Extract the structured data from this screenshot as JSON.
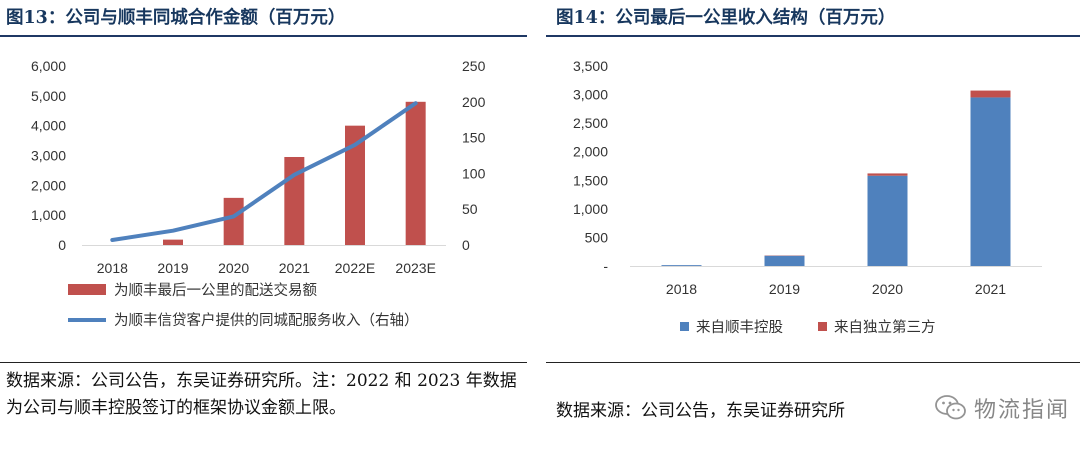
{
  "left": {
    "title": "图13：公司与顺丰同城合作金额（百万元）",
    "note": "数据来源：公司公告，东吴证券研究所。注：2022 和 2023 年数据为公司与顺丰控股签订的框架协议金额上限。"
  },
  "right": {
    "title": "图14：公司最后一公里收入结构（百万元）",
    "note": "数据来源：公司公告，东吴证券研究所"
  },
  "watermark": {
    "text": "物流指闻",
    "icon": "wechat-icon"
  },
  "colors": {
    "red": "#c0504d",
    "blue": "#4f81bd",
    "title": "#17375e"
  },
  "chart_data": [
    {
      "type": "bar",
      "title": "图13：公司与顺丰同城合作金额（百万元）",
      "categories": [
        "2018",
        "2019",
        "2020",
        "2021",
        "2022E",
        "2023E"
      ],
      "y_ticks": [
        "6,000",
        "5,000",
        "4,000",
        "3,000",
        "2,000",
        "1,000",
        "0"
      ],
      "y2_ticks": [
        "250",
        "200",
        "150",
        "100",
        "50",
        "0"
      ],
      "ylim": [
        0,
        6000
      ],
      "y2lim": [
        0,
        250
      ],
      "grid": false,
      "legend_position": "bottom",
      "series": [
        {
          "name": "为顺丰最后一公里的配送交易额",
          "type": "bar",
          "axis": "left",
          "color": "#c0504d",
          "values": [
            0,
            180,
            1580,
            2950,
            4000,
            4800
          ]
        },
        {
          "name": "为顺丰信贷客户提供的同城配服务收入（右轴）",
          "type": "line",
          "axis": "right",
          "color": "#4f81bd",
          "values": [
            7,
            20,
            40,
            98,
            140,
            198
          ]
        }
      ]
    },
    {
      "type": "bar",
      "stacked": true,
      "title": "图14：公司最后一公里收入结构（百万元）",
      "categories": [
        "2018",
        "2019",
        "2020",
        "2021"
      ],
      "y_ticks": [
        "3,500",
        "3,000",
        "2,500",
        "2,000",
        "1,500",
        "1,000",
        "500",
        "-"
      ],
      "ylim": [
        0,
        3500
      ],
      "grid": false,
      "legend_position": "bottom",
      "series": [
        {
          "name": "来自顺丰控股",
          "color": "#4f81bd",
          "values": [
            15,
            180,
            1580,
            2950
          ]
        },
        {
          "name": "来自独立第三方",
          "color": "#c0504d",
          "values": [
            0,
            5,
            40,
            120
          ]
        }
      ]
    }
  ]
}
